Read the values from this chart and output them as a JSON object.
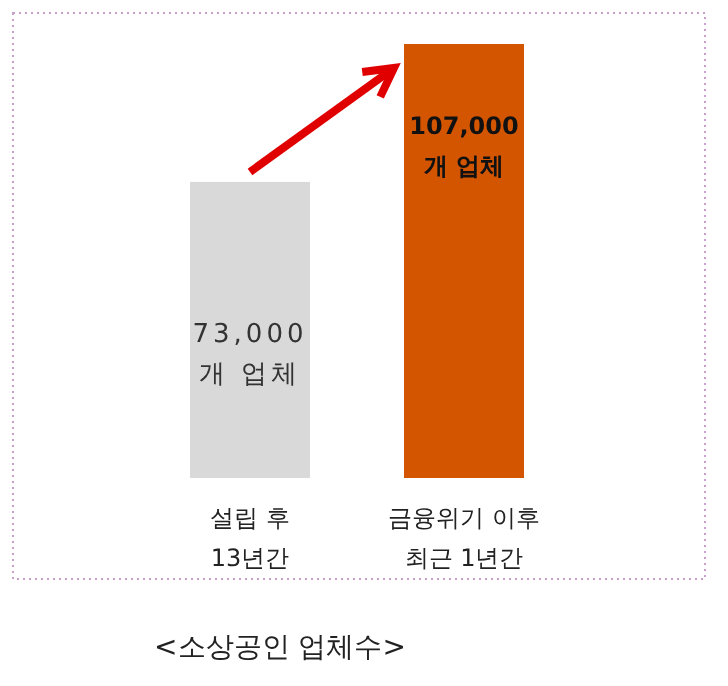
{
  "chart_data": {
    "type": "bar",
    "categories": [
      "설립 후\n13년간",
      "금융위기 이후\n최근 1년간"
    ],
    "values": [
      73000,
      107000
    ],
    "colors": [
      "#d9d9d9",
      "#d45500"
    ],
    "value_labels": [
      "73,000\n개 업체",
      "107,000\n개 업체"
    ],
    "annotations": [
      "<소상공인 업체수>"
    ]
  }
}
